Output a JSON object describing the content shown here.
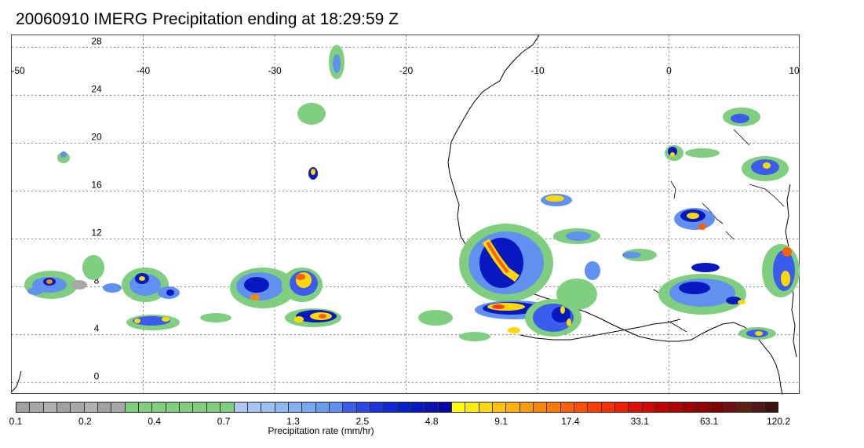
{
  "title": "20060910 IMERG Precipitation ending at 18:29:59 Z",
  "map": {
    "lon_range": [
      -50,
      10
    ],
    "lat_range": [
      -1,
      29
    ],
    "lon_ticks": [
      "-50",
      "-40",
      "-30",
      "-20",
      "-10",
      "0",
      "10"
    ],
    "lat_ticks": [
      "28",
      "24",
      "20",
      "16",
      "12",
      "8",
      "4",
      "0"
    ]
  },
  "legend": {
    "title": "Precipitation rate (mm/hr)",
    "tick_labels": [
      "0.1",
      "0.2",
      "0.4",
      "0.7",
      "1.3",
      "2.5",
      "4.8",
      "9.1",
      "17.4",
      "33.1",
      "63.1",
      "120.2"
    ],
    "colors": [
      "#a0a0a0",
      "#a8a8a8",
      "#b0b0b0",
      "#a0a0a0",
      "#a8a8a8",
      "#b0b0b0",
      "#a0a0a0",
      "#a8a8a8",
      "#7fcf7f",
      "#7fcf7f",
      "#7fcf7f",
      "#7fcf7f",
      "#7fcf7f",
      "#7fcf7f",
      "#7fcf7f",
      "#7fcf7f",
      "#b0c8f0",
      "#a8c4f0",
      "#9cc0f0",
      "#90b8f0",
      "#84b0f0",
      "#78a8f0",
      "#6c9cf0",
      "#6090f0",
      "#3c5cf0",
      "#2c48e8",
      "#1c34e0",
      "#1028d8",
      "#0820cc",
      "#0818c0",
      "#0810b4",
      "#0808a8",
      "#ffff00",
      "#ffec00",
      "#ffd800",
      "#ffc400",
      "#ffb000",
      "#ff9c00",
      "#ff8800",
      "#ff7800",
      "#ff6000",
      "#ff5000",
      "#ff4000",
      "#ff3000",
      "#f02000",
      "#e01000",
      "#d00800",
      "#c00000",
      "#b00000",
      "#a00000",
      "#900000",
      "#800000",
      "#701010",
      "#602010",
      "#501818",
      "#401010"
    ]
  }
}
